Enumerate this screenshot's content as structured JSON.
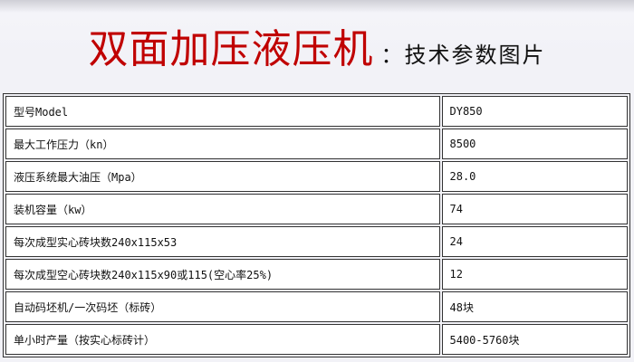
{
  "page": {
    "background_color": "#f2f2f7",
    "table_border_color": "#333333",
    "cell_background_color": "#ffffff"
  },
  "header": {
    "title": "双面加压液压机",
    "title_color": "#c00000",
    "separator": "：",
    "subtitle": "技术参数图片"
  },
  "table": {
    "rows": [
      {
        "label": "型号Model",
        "value": "DY850"
      },
      {
        "label": "最大工作压力（kn）",
        "value": "8500"
      },
      {
        "label": "液压系统最大油压（Mpa）",
        "value": "28.0"
      },
      {
        "label": "装机容量（kw）",
        "value": "74"
      },
      {
        "label": "每次成型实心砖块数240x115x53",
        "value": "24"
      },
      {
        "label": "每次成型空心砖块数240x115x90或115(空心率25%)",
        "value": "12"
      },
      {
        "label": "自动码坯机/一次码坯（标砖）",
        "value": "48块"
      },
      {
        "label": "单小时产量（按实心标砖计）",
        "value": "5400-5760块"
      }
    ]
  }
}
